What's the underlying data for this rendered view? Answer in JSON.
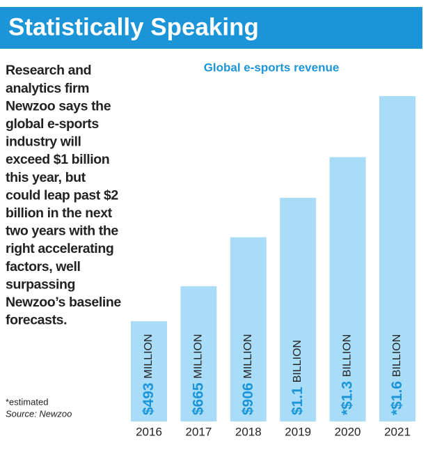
{
  "chart_data": {
    "type": "bar",
    "title": "Statistically Speaking",
    "subtitle": "Global e-sports revenue",
    "description": [
      "Research and",
      "analytics firm",
      "Newzoo says the",
      "global e-sports",
      "industry will",
      "exceed $1 billion",
      "this year, but",
      "could leap past $2",
      "billion in the next",
      "two years with the",
      "right accelerating",
      "factors, well",
      "surpassing",
      "Newzoo’s baseline",
      "forecasts."
    ],
    "notes": [
      "*estimated",
      "Source: Newzoo"
    ],
    "categories": [
      "2016",
      "2017",
      "2018",
      "2019",
      "2020",
      "2021"
    ],
    "values": [
      493,
      665,
      906,
      1100,
      1300,
      1600
    ],
    "value_labels": [
      "$493 MILLION",
      "$665 MILLION",
      "$906 MILLION",
      "$1.1 BILLION",
      "*$1.3 BILLION",
      "*$1.6 BILLION"
    ],
    "color": "#a9dcf7"
  }
}
